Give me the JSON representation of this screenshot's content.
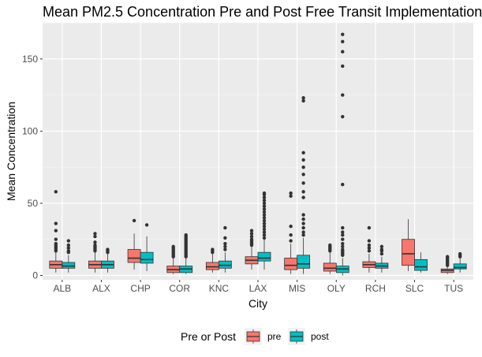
{
  "chart_data": {
    "type": "boxplot",
    "title": "Mean PM2.5 Concentration Pre and Post Free Transit Implementation",
    "xlabel": "City",
    "ylabel": "Mean Concentration",
    "ylim": [
      -3,
      175
    ],
    "yticks": [
      0,
      50,
      100,
      150
    ],
    "grid": true,
    "legend": {
      "title": "Pre or Post",
      "position": "bottom"
    },
    "categories": [
      "ALB",
      "ALX",
      "CHP",
      "COR",
      "KNC",
      "LAX",
      "MIS",
      "OLY",
      "RCH",
      "SLC",
      "TUS"
    ],
    "series": [
      {
        "name": "pre",
        "color": "#F8766D",
        "boxes": [
          {
            "min": 2,
            "q1": 5,
            "median": 7.5,
            "q3": 10,
            "max": 16,
            "outliers": [
              17,
              18,
              19,
              20,
              21,
              22,
              25,
              31,
              36,
              58
            ]
          },
          {
            "min": 2,
            "q1": 5,
            "median": 7.5,
            "q3": 10,
            "max": 16,
            "outliers": [
              17,
              18,
              19,
              20,
              21,
              23,
              27,
              29
            ]
          },
          {
            "min": 4,
            "q1": 9,
            "median": 12,
            "q3": 18,
            "max": 29,
            "outliers": [
              38
            ]
          },
          {
            "min": 1,
            "q1": 2,
            "median": 4,
            "q3": 6.5,
            "max": 12,
            "outliers": [
              13,
              14,
              15,
              16,
              17,
              18,
              19,
              20
            ]
          },
          {
            "min": 2,
            "q1": 4,
            "median": 6,
            "q3": 9,
            "max": 15,
            "outliers": [
              16,
              17,
              18
            ]
          },
          {
            "min": 4,
            "q1": 8,
            "median": 10.5,
            "q3": 13,
            "max": 20,
            "outliers": [
              21,
              22,
              23,
              24,
              25,
              27,
              29,
              31
            ]
          },
          {
            "min": 1,
            "q1": 4,
            "median": 7,
            "q3": 12,
            "max": 22,
            "outliers": [
              24,
              28,
              34,
              55,
              57
            ]
          },
          {
            "min": 1,
            "q1": 3,
            "median": 5,
            "q3": 8.5,
            "max": 16,
            "outliers": [
              17,
              18,
              19,
              20,
              21
            ]
          },
          {
            "min": 2,
            "q1": 5.5,
            "median": 7.5,
            "q3": 9.5,
            "max": 15,
            "outliers": [
              17,
              19,
              21,
              24,
              33
            ]
          },
          {
            "min": 3,
            "q1": 7,
            "median": 15,
            "q3": 25,
            "max": 39,
            "outliers": []
          },
          {
            "min": 1,
            "q1": 2,
            "median": 3.5,
            "q3": 4.5,
            "max": 6,
            "outliers": [
              7,
              8,
              9,
              10,
              11,
              12,
              13
            ]
          }
        ]
      },
      {
        "name": "post",
        "color": "#00BFC4",
        "boxes": [
          {
            "min": 2,
            "q1": 5,
            "median": 6.5,
            "q3": 9,
            "max": 14,
            "outliers": [
              16,
              17,
              19,
              21,
              24
            ]
          },
          {
            "min": 2,
            "q1": 5,
            "median": 7.5,
            "q3": 10,
            "max": 15,
            "outliers": [
              16,
              17,
              18
            ]
          },
          {
            "min": 3,
            "q1": 8.5,
            "median": 11,
            "q3": 16,
            "max": 27,
            "outliers": [
              35
            ]
          },
          {
            "min": 1,
            "q1": 2,
            "median": 4.5,
            "q3": 6.5,
            "max": 12,
            "outliers": [
              13,
              14,
              15,
              16,
              17,
              18,
              19,
              20,
              21,
              22,
              23,
              24,
              25,
              26,
              27,
              28
            ]
          },
          {
            "min": 2,
            "q1": 5,
            "median": 7,
            "q3": 10,
            "max": 16,
            "outliers": [
              18,
              20,
              22,
              26,
              33
            ]
          },
          {
            "min": 4,
            "q1": 10,
            "median": 12,
            "q3": 16,
            "max": 25,
            "outliers": [
              26,
              28,
              30,
              32,
              34,
              36,
              38,
              40,
              42,
              44,
              46,
              48,
              50,
              52,
              54,
              56,
              57
            ]
          },
          {
            "min": 1,
            "q1": 5,
            "median": 8,
            "q3": 14,
            "max": 26,
            "outliers": [
              28,
              30,
              33,
              36,
              39,
              42,
              54,
              58,
              64,
              70,
              75,
              80,
              85,
              121,
              123
            ]
          },
          {
            "min": 0,
            "q1": 2,
            "median": 4.5,
            "q3": 6.5,
            "max": 12,
            "outliers": [
              14,
              15,
              16,
              17,
              18,
              20,
              22,
              25,
              28,
              30,
              33,
              63,
              110,
              125,
              145,
              155,
              162,
              167
            ]
          },
          {
            "min": 2,
            "q1": 5,
            "median": 6.5,
            "q3": 8.5,
            "max": 13,
            "outliers": [
              15,
              17,
              18,
              20
            ]
          },
          {
            "min": 2,
            "q1": 3.5,
            "median": 6,
            "q3": 11,
            "max": 16,
            "outliers": []
          },
          {
            "min": 2,
            "q1": 4.5,
            "median": 5.5,
            "q3": 8,
            "max": 12,
            "outliers": [
              13,
              14,
              15
            ]
          }
        ]
      }
    ]
  }
}
